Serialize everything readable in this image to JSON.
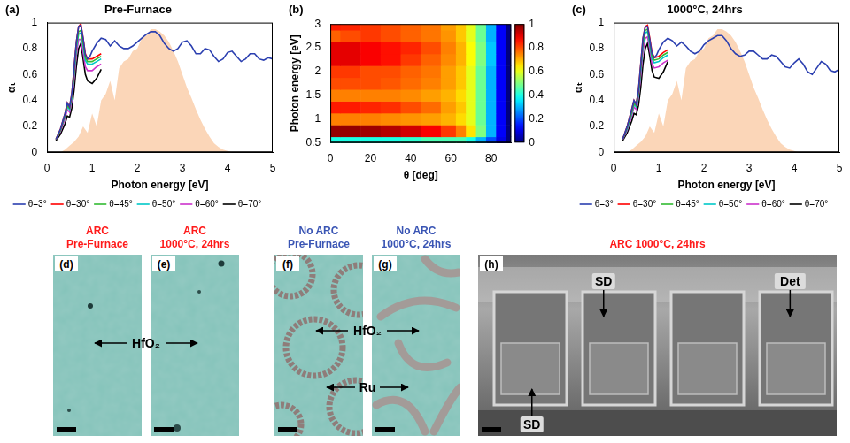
{
  "chart_data": [
    {
      "type": "line",
      "panel_label": "(a)",
      "title": "Pre-Furnace",
      "x_label": "Photon energy [eV]",
      "y_label": "αₜ",
      "xlim": [
        0,
        5
      ],
      "xticks": [
        0,
        1,
        2,
        3,
        4,
        5
      ],
      "ylim": [
        0,
        1
      ],
      "yticks": [
        0,
        0.2,
        0.4,
        0.6,
        0.8,
        1
      ],
      "grid": false,
      "legend": "bottom",
      "series": [
        {
          "name": "θ=3°",
          "color": "#2b3fb0",
          "x": [
            0.2,
            0.3,
            0.4,
            0.45,
            0.5,
            0.55,
            0.6,
            0.65,
            0.7,
            0.75,
            0.8,
            0.85,
            0.9,
            0.95,
            1.0,
            1.1,
            1.2,
            1.3,
            1.4,
            1.5,
            1.6,
            1.7,
            1.8,
            1.9,
            2.0,
            2.1,
            2.2,
            2.3,
            2.4,
            2.5,
            2.6,
            2.7,
            2.8,
            2.9,
            3.0,
            3.1,
            3.2,
            3.3,
            3.4,
            3.5,
            3.6,
            3.7,
            3.8,
            3.9,
            4.0,
            4.1,
            4.2,
            4.3,
            4.4,
            4.5,
            4.6,
            4.7,
            4.8,
            4.9,
            5.0
          ],
          "values": [
            0.1,
            0.18,
            0.3,
            0.38,
            0.35,
            0.45,
            0.65,
            0.85,
            0.97,
            0.98,
            0.88,
            0.75,
            0.72,
            0.74,
            0.78,
            0.84,
            0.88,
            0.87,
            0.82,
            0.86,
            0.82,
            0.8,
            0.8,
            0.82,
            0.85,
            0.88,
            0.91,
            0.93,
            0.93,
            0.9,
            0.84,
            0.8,
            0.78,
            0.8,
            0.85,
            0.86,
            0.82,
            0.76,
            0.76,
            0.8,
            0.79,
            0.74,
            0.7,
            0.72,
            0.77,
            0.78,
            0.74,
            0.7,
            0.72,
            0.76,
            0.76,
            0.72,
            0.71,
            0.73,
            0.72
          ]
        },
        {
          "name": "θ=30°",
          "color": "#ff0000",
          "x": [
            0.2,
            0.3,
            0.4,
            0.45,
            0.5,
            0.55,
            0.6,
            0.65,
            0.7,
            0.75,
            0.8,
            0.85,
            0.9,
            1.0,
            1.1,
            1.2
          ],
          "values": [
            0.1,
            0.18,
            0.3,
            0.38,
            0.35,
            0.45,
            0.65,
            0.85,
            0.97,
            0.99,
            0.88,
            0.76,
            0.72,
            0.72,
            0.74,
            0.76
          ]
        },
        {
          "name": "θ=45°",
          "color": "#33bb33",
          "x": [
            0.2,
            0.3,
            0.4,
            0.45,
            0.5,
            0.55,
            0.6,
            0.65,
            0.7,
            0.75,
            0.8,
            0.85,
            0.9,
            1.0,
            1.1,
            1.2
          ],
          "values": [
            0.1,
            0.17,
            0.29,
            0.36,
            0.34,
            0.43,
            0.62,
            0.82,
            0.93,
            0.94,
            0.84,
            0.73,
            0.7,
            0.7,
            0.72,
            0.74
          ]
        },
        {
          "name": "θ=50°",
          "color": "#00c8c8",
          "x": [
            0.2,
            0.3,
            0.4,
            0.45,
            0.5,
            0.55,
            0.6,
            0.65,
            0.7,
            0.75,
            0.8,
            0.85,
            0.9,
            1.0,
            1.1,
            1.2
          ],
          "values": [
            0.1,
            0.17,
            0.28,
            0.35,
            0.33,
            0.42,
            0.6,
            0.8,
            0.91,
            0.92,
            0.82,
            0.71,
            0.68,
            0.68,
            0.7,
            0.72
          ]
        },
        {
          "name": "θ=60°",
          "color": "#cc33cc",
          "x": [
            0.2,
            0.3,
            0.4,
            0.45,
            0.5,
            0.55,
            0.6,
            0.65,
            0.7,
            0.75,
            0.8,
            0.85,
            0.9,
            1.0,
            1.1,
            1.2
          ],
          "values": [
            0.1,
            0.16,
            0.26,
            0.33,
            0.31,
            0.4,
            0.56,
            0.75,
            0.87,
            0.87,
            0.77,
            0.66,
            0.63,
            0.63,
            0.66,
            0.68
          ]
        },
        {
          "name": "θ=70°",
          "color": "#000000",
          "x": [
            0.2,
            0.3,
            0.4,
            0.45,
            0.5,
            0.55,
            0.6,
            0.65,
            0.7,
            0.75,
            0.8,
            0.85,
            0.9,
            1.0,
            1.1,
            1.2
          ],
          "values": [
            0.09,
            0.14,
            0.22,
            0.28,
            0.27,
            0.34,
            0.48,
            0.66,
            0.8,
            0.84,
            0.72,
            0.6,
            0.55,
            0.53,
            0.57,
            0.64
          ]
        }
      ],
      "spectrum": {
        "color": "#fbd6b8",
        "x": [
          0.3,
          0.4,
          0.5,
          0.6,
          0.7,
          0.8,
          0.9,
          1.0,
          1.1,
          1.2,
          1.3,
          1.4,
          1.5,
          1.6,
          1.7,
          1.8,
          1.9,
          2.0,
          2.1,
          2.2,
          2.3,
          2.4,
          2.5,
          2.6,
          2.7,
          2.8,
          2.9,
          3.0,
          3.1,
          3.2,
          3.3,
          3.4,
          3.5,
          3.6,
          3.7,
          3.8,
          3.9,
          4.0,
          4.1
        ],
        "values": [
          0,
          0.02,
          0.05,
          0.08,
          0.12,
          0.2,
          0.15,
          0.3,
          0.2,
          0.4,
          0.45,
          0.55,
          0.4,
          0.65,
          0.7,
          0.72,
          0.78,
          0.8,
          0.88,
          0.9,
          0.95,
          0.95,
          0.93,
          0.9,
          0.85,
          0.78,
          0.7,
          0.6,
          0.5,
          0.42,
          0.33,
          0.25,
          0.18,
          0.12,
          0.07,
          0.04,
          0.02,
          0.01,
          0
        ]
      }
    },
    {
      "type": "heatmap",
      "panel_label": "(b)",
      "x_label": "θ [deg]",
      "y_label": "Photon energy [eV]",
      "xlim": [
        0,
        90
      ],
      "xticks": [
        0,
        20,
        40,
        60,
        80
      ],
      "ylim": [
        0.5,
        3
      ],
      "yticks": [
        0.5,
        1,
        1.5,
        2,
        2.5,
        3
      ],
      "x": [
        0,
        10,
        20,
        30,
        40,
        50,
        60,
        65,
        70,
        75,
        80,
        85,
        90
      ],
      "y": [
        0.5,
        0.75,
        1.0,
        1.25,
        1.5,
        1.75,
        2.0,
        2.25,
        2.5,
        2.75,
        3.0
      ],
      "cells": [
        [
          0.4,
          0.4,
          0.4,
          0.4,
          0.42,
          0.45,
          0.45,
          0.45,
          0.4,
          0.3,
          0.2,
          0.1,
          0
        ],
        [
          0.98,
          0.98,
          0.97,
          0.95,
          0.92,
          0.88,
          0.82,
          0.75,
          0.65,
          0.5,
          0.3,
          0.12,
          0
        ],
        [
          0.75,
          0.75,
          0.75,
          0.74,
          0.73,
          0.72,
          0.7,
          0.66,
          0.6,
          0.48,
          0.3,
          0.12,
          0
        ],
        [
          0.85,
          0.85,
          0.84,
          0.83,
          0.8,
          0.77,
          0.72,
          0.68,
          0.6,
          0.48,
          0.3,
          0.12,
          0
        ],
        [
          0.75,
          0.75,
          0.75,
          0.75,
          0.74,
          0.72,
          0.7,
          0.66,
          0.6,
          0.48,
          0.3,
          0.12,
          0
        ],
        [
          0.8,
          0.8,
          0.8,
          0.79,
          0.77,
          0.75,
          0.72,
          0.68,
          0.6,
          0.48,
          0.3,
          0.12,
          0
        ],
        [
          0.82,
          0.82,
          0.8,
          0.8,
          0.78,
          0.76,
          0.72,
          0.68,
          0.6,
          0.48,
          0.3,
          0.12,
          0
        ],
        [
          0.9,
          0.9,
          0.88,
          0.86,
          0.82,
          0.78,
          0.74,
          0.7,
          0.62,
          0.5,
          0.32,
          0.12,
          0
        ],
        [
          0.9,
          0.9,
          0.88,
          0.86,
          0.84,
          0.8,
          0.75,
          0.7,
          0.62,
          0.5,
          0.32,
          0.12,
          0
        ],
        [
          0.78,
          0.8,
          0.82,
          0.8,
          0.78,
          0.76,
          0.73,
          0.68,
          0.6,
          0.48,
          0.3,
          0.12,
          0
        ],
        [
          0.85,
          0.84,
          0.82,
          0.8,
          0.78,
          0.76,
          0.72,
          0.68,
          0.6,
          0.48,
          0.3,
          0.12,
          0
        ]
      ],
      "colorbar": {
        "lim": [
          0,
          1
        ],
        "ticks": [
          0,
          0.2,
          0.4,
          0.6,
          0.8,
          1
        ]
      }
    },
    {
      "type": "line",
      "panel_label": "(c)",
      "title": "1000°C, 24hrs",
      "x_label": "Photon energy [eV]",
      "y_label": "αₜ",
      "xlim": [
        0,
        5
      ],
      "xticks": [
        0,
        1,
        2,
        3,
        4,
        5
      ],
      "ylim": [
        0,
        1
      ],
      "yticks": [
        0,
        0.2,
        0.4,
        0.6,
        0.8,
        1
      ],
      "grid": false,
      "legend": "bottom",
      "series": [
        {
          "name": "θ=3°",
          "color": "#2b3fb0",
          "x": [
            0.2,
            0.3,
            0.4,
            0.45,
            0.5,
            0.55,
            0.6,
            0.65,
            0.7,
            0.75,
            0.8,
            0.85,
            0.9,
            0.95,
            1.0,
            1.1,
            1.2,
            1.3,
            1.4,
            1.5,
            1.6,
            1.7,
            1.8,
            1.9,
            2.0,
            2.1,
            2.2,
            2.3,
            2.4,
            2.5,
            2.6,
            2.7,
            2.8,
            2.9,
            3.0,
            3.1,
            3.2,
            3.3,
            3.4,
            3.5,
            3.6,
            3.7,
            3.8,
            3.9,
            4.0,
            4.1,
            4.2,
            4.3,
            4.4,
            4.5,
            4.6,
            4.7,
            4.8,
            4.9,
            5.0
          ],
          "values": [
            0.1,
            0.2,
            0.33,
            0.4,
            0.37,
            0.48,
            0.68,
            0.88,
            0.97,
            0.97,
            0.87,
            0.76,
            0.73,
            0.75,
            0.79,
            0.85,
            0.88,
            0.86,
            0.82,
            0.85,
            0.82,
            0.78,
            0.76,
            0.78,
            0.83,
            0.86,
            0.88,
            0.9,
            0.9,
            0.86,
            0.8,
            0.76,
            0.74,
            0.75,
            0.78,
            0.78,
            0.75,
            0.72,
            0.72,
            0.75,
            0.74,
            0.7,
            0.66,
            0.65,
            0.69,
            0.72,
            0.68,
            0.62,
            0.6,
            0.65,
            0.7,
            0.68,
            0.63,
            0.62,
            0.64
          ]
        },
        {
          "name": "θ=30°",
          "color": "#ff0000",
          "x": [
            0.2,
            0.3,
            0.4,
            0.45,
            0.5,
            0.55,
            0.6,
            0.65,
            0.7,
            0.75,
            0.8,
            0.85,
            0.9,
            1.0,
            1.1,
            1.2
          ],
          "values": [
            0.1,
            0.2,
            0.33,
            0.4,
            0.37,
            0.48,
            0.68,
            0.88,
            0.97,
            0.98,
            0.88,
            0.77,
            0.73,
            0.74,
            0.77,
            0.79
          ]
        },
        {
          "name": "θ=45°",
          "color": "#33bb33",
          "x": [
            0.2,
            0.3,
            0.4,
            0.45,
            0.5,
            0.55,
            0.6,
            0.65,
            0.7,
            0.75,
            0.8,
            0.85,
            0.9,
            1.0,
            1.1,
            1.2
          ],
          "values": [
            0.1,
            0.19,
            0.31,
            0.38,
            0.36,
            0.46,
            0.65,
            0.85,
            0.94,
            0.95,
            0.85,
            0.74,
            0.71,
            0.72,
            0.75,
            0.77
          ]
        },
        {
          "name": "θ=50°",
          "color": "#00c8c8",
          "x": [
            0.2,
            0.3,
            0.4,
            0.45,
            0.5,
            0.55,
            0.6,
            0.65,
            0.7,
            0.75,
            0.8,
            0.85,
            0.9,
            1.0,
            1.1,
            1.2
          ],
          "values": [
            0.1,
            0.18,
            0.3,
            0.37,
            0.35,
            0.44,
            0.63,
            0.83,
            0.92,
            0.93,
            0.83,
            0.72,
            0.69,
            0.7,
            0.73,
            0.75
          ]
        },
        {
          "name": "θ=60°",
          "color": "#cc33cc",
          "x": [
            0.2,
            0.3,
            0.4,
            0.45,
            0.5,
            0.55,
            0.6,
            0.65,
            0.7,
            0.75,
            0.8,
            0.85,
            0.9,
            1.0,
            1.1,
            1.2
          ],
          "values": [
            0.1,
            0.17,
            0.28,
            0.35,
            0.33,
            0.42,
            0.59,
            0.78,
            0.88,
            0.89,
            0.79,
            0.68,
            0.65,
            0.66,
            0.69,
            0.71
          ]
        },
        {
          "name": "θ=70°",
          "color": "#000000",
          "x": [
            0.2,
            0.3,
            0.4,
            0.45,
            0.5,
            0.55,
            0.6,
            0.65,
            0.7,
            0.75,
            0.8,
            0.85,
            0.9,
            1.0,
            1.1,
            1.2
          ],
          "values": [
            0.09,
            0.15,
            0.24,
            0.3,
            0.29,
            0.36,
            0.5,
            0.68,
            0.8,
            0.84,
            0.74,
            0.63,
            0.58,
            0.57,
            0.62,
            0.7
          ]
        }
      ],
      "spectrum": {
        "color": "#fbd6b8",
        "x": [
          0.3,
          0.4,
          0.5,
          0.6,
          0.7,
          0.8,
          0.9,
          1.0,
          1.1,
          1.2,
          1.3,
          1.4,
          1.5,
          1.6,
          1.7,
          1.8,
          1.9,
          2.0,
          2.1,
          2.2,
          2.3,
          2.4,
          2.5,
          2.6,
          2.7,
          2.8,
          2.9,
          3.0,
          3.1,
          3.2,
          3.3,
          3.4,
          3.5,
          3.6,
          3.7,
          3.8,
          3.9,
          4.0,
          4.1
        ],
        "values": [
          0,
          0.02,
          0.05,
          0.08,
          0.12,
          0.2,
          0.15,
          0.3,
          0.2,
          0.4,
          0.45,
          0.55,
          0.4,
          0.65,
          0.7,
          0.72,
          0.78,
          0.8,
          0.88,
          0.9,
          0.95,
          0.95,
          0.93,
          0.9,
          0.85,
          0.78,
          0.7,
          0.6,
          0.5,
          0.42,
          0.33,
          0.25,
          0.18,
          0.12,
          0.07,
          0.04,
          0.02,
          0.01,
          0
        ]
      }
    }
  ],
  "images": [
    {
      "label": "(d)",
      "title": [
        "ARC",
        "Pre-Furnace"
      ],
      "color": "#ff1a1a"
    },
    {
      "label": "(e)",
      "title": [
        "ARC",
        "1000°C, 24hrs"
      ],
      "color": "#ff1a1a"
    },
    {
      "label": "(f)",
      "title": [
        "No ARC",
        "Pre-Furnace"
      ],
      "color": "#3a55b4"
    },
    {
      "label": "(g)",
      "title": [
        "No ARC",
        "1000°C, 24hrs"
      ],
      "color": "#3a55b4"
    },
    {
      "label": "(h)",
      "title": [
        "ARC 1000°C, 24hrs"
      ],
      "color": "#ff1a1a"
    }
  ],
  "annotations": [
    {
      "text": "HfO₂",
      "panels": [
        "(d)",
        "(e)"
      ]
    },
    {
      "text": "HfO₂",
      "panels": [
        "(f)",
        "(g)"
      ]
    },
    {
      "text": "Ru",
      "panels": [
        "(f)",
        "(g)"
      ]
    },
    {
      "text": "SD",
      "panels": [
        "(h)"
      ]
    },
    {
      "text": "Det",
      "panels": [
        "(h)"
      ]
    },
    {
      "text": "SD",
      "panels": [
        "(h)"
      ]
    }
  ]
}
